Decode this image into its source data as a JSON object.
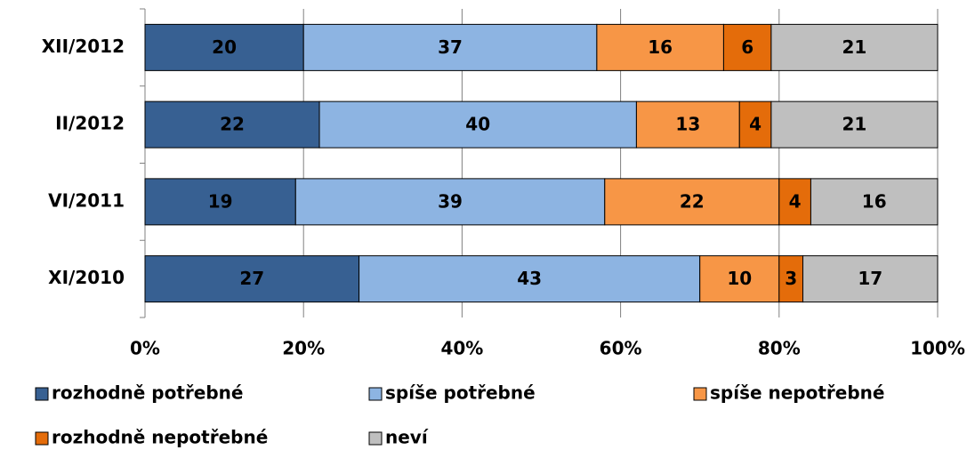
{
  "chart_data": {
    "type": "stacked-bar-horizontal",
    "categories": [
      "XII/2012",
      "II/2012",
      "VI/2011",
      "XI/2010"
    ],
    "series": [
      {
        "name": "rozhodně potřebné",
        "color": "#376092",
        "values": [
          20,
          22,
          19,
          27
        ]
      },
      {
        "name": "spíše potřebné",
        "color": "#8db4e2",
        "values": [
          37,
          40,
          39,
          43
        ]
      },
      {
        "name": "spíše nepotřebné",
        "color": "#f79646",
        "values": [
          16,
          13,
          22,
          10
        ]
      },
      {
        "name": "rozhodně nepotřebné",
        "color": "#e46c0a",
        "values": [
          6,
          4,
          4,
          3
        ]
      },
      {
        "name": "neví",
        "color": "#bfbfbf",
        "values": [
          21,
          21,
          16,
          17
        ]
      }
    ],
    "xlim": [
      0,
      100
    ],
    "xticks": [
      {
        "value": 0,
        "label": "0%"
      },
      {
        "value": 20,
        "label": "20%"
      },
      {
        "value": 40,
        "label": "40%"
      },
      {
        "value": 60,
        "label": "60%"
      },
      {
        "value": 80,
        "label": "80%"
      },
      {
        "value": 100,
        "label": "100%"
      }
    ],
    "grid": true
  }
}
